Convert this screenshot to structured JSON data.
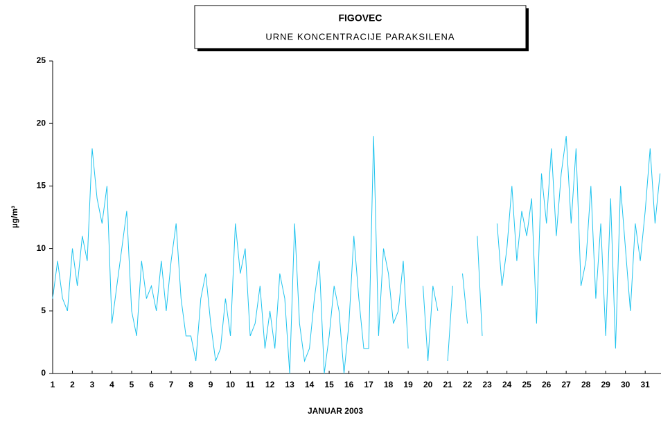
{
  "chart_data": {
    "type": "line",
    "title": "FIGOVEC",
    "subtitle": "URNE KONCENTRACIJE PARAKSILENA",
    "x_label": "JANUAR 2003",
    "y_label": "µg/m³",
    "xlim": [
      1,
      31.8
    ],
    "xticks": [
      1,
      2,
      3,
      4,
      5,
      6,
      7,
      8,
      9,
      10,
      11,
      12,
      13,
      14,
      15,
      16,
      17,
      18,
      19,
      20,
      21,
      22,
      23,
      24,
      25,
      26,
      27,
      28,
      29,
      30,
      31
    ],
    "ylim": [
      0,
      25
    ],
    "yticks": [
      0,
      5,
      10,
      15,
      20,
      25
    ],
    "x": [
      1,
      1.25,
      1.5,
      1.75,
      2,
      2.25,
      2.5,
      2.75,
      3,
      3.25,
      3.5,
      3.75,
      4,
      4.25,
      4.5,
      4.75,
      5,
      5.25,
      5.5,
      5.75,
      6,
      6.25,
      6.5,
      6.75,
      7,
      7.25,
      7.5,
      7.75,
      8,
      8.25,
      8.5,
      8.75,
      9,
      9.25,
      9.5,
      9.75,
      10,
      10.25,
      10.5,
      10.75,
      11,
      11.25,
      11.5,
      11.75,
      12,
      12.25,
      12.5,
      12.75,
      13,
      13.25,
      13.5,
      13.75,
      14,
      14.25,
      14.5,
      14.75,
      15,
      15.25,
      15.5,
      15.75,
      16,
      16.25,
      16.5,
      16.75,
      17,
      17.25,
      17.5,
      17.75,
      18,
      18.25,
      18.5,
      18.75,
      19,
      19.25,
      19.5,
      19.75,
      20,
      20.25,
      20.5,
      20.75,
      21,
      21.25,
      21.5,
      21.75,
      22,
      22.25,
      22.5,
      22.75,
      23,
      23.25,
      23.5,
      23.75,
      24,
      24.25,
      24.5,
      24.75,
      25,
      25.25,
      25.5,
      25.75,
      26,
      26.25,
      26.5,
      26.75,
      27,
      27.25,
      27.5,
      27.75,
      28,
      28.25,
      28.5,
      28.75,
      29,
      29.25,
      29.5,
      29.75,
      30,
      30.25,
      30.5,
      30.75,
      31,
      31.25,
      31.5,
      31.75
    ],
    "series": [
      {
        "color": "#1ec3ee",
        "values": [
          6,
          9,
          6,
          5,
          10,
          7,
          11,
          9,
          18,
          14,
          12,
          15,
          4,
          7,
          10,
          13,
          5,
          3,
          9,
          6,
          7,
          5,
          9,
          5,
          9,
          12,
          6,
          3,
          3,
          1,
          6,
          8,
          4,
          1,
          2,
          6,
          3,
          12,
          8,
          10,
          3,
          4,
          7,
          2,
          5,
          2,
          8,
          6,
          0,
          12,
          4,
          1,
          2,
          6,
          9,
          0,
          3,
          7,
          5,
          0,
          4,
          11,
          6,
          2,
          2,
          19,
          3,
          10,
          8,
          4,
          5,
          9,
          2,
          null,
          null,
          7,
          1,
          7,
          5,
          null,
          1,
          7,
          null,
          8,
          4,
          null,
          11,
          3,
          null,
          null,
          12,
          7,
          10,
          15,
          9,
          13,
          11,
          14,
          4,
          16,
          12,
          18,
          11,
          16,
          19,
          12,
          18,
          7,
          9,
          15,
          6,
          12,
          3,
          14,
          2,
          15,
          10,
          5,
          12,
          9,
          13,
          18,
          12,
          16
        ]
      }
    ]
  }
}
